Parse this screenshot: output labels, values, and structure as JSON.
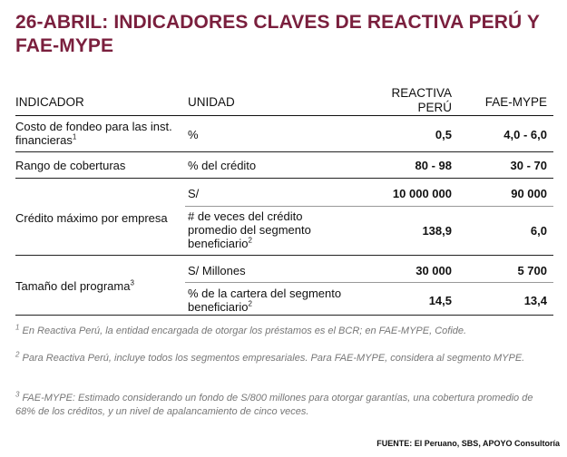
{
  "title": "26-ABRIL: INDICADORES CLAVES DE REACTIVA PERÚ Y FAE-MYPE",
  "headers": {
    "indicador": "INDICADOR",
    "unidad": "UNIDAD",
    "reactiva_line1": "REACTIVA",
    "reactiva_line2": "PERÚ",
    "fae": "FAE-MYPE"
  },
  "rows": {
    "costo": {
      "label": "Costo de fondeo para las inst. financieras",
      "label_line1": "Costo de fondeo para las inst.",
      "label_line2": "financieras",
      "sup": "1",
      "unidad": "%",
      "reactiva": "0,5",
      "fae": "4,0 - 6,0"
    },
    "rango": {
      "label": "Rango de coberturas",
      "unidad": "% del crédito",
      "reactiva": "80 - 98",
      "fae": "30 - 70"
    },
    "credito": {
      "label": "Crédito máximo por empresa",
      "sub1": {
        "unidad": "S/",
        "reactiva": "10 000 000",
        "fae": "90 000"
      },
      "sub2": {
        "unidad_line1": "# de veces del crédito",
        "unidad_line2": "promedio del segmento",
        "unidad_line3": "beneficiario",
        "sup": "2",
        "reactiva": "138,9",
        "fae": "6,0"
      }
    },
    "tamano": {
      "label": "Tamaño del programa",
      "sup": "3",
      "sub1": {
        "unidad": "S/ Millones",
        "reactiva": "30 000",
        "fae": "5 700"
      },
      "sub2": {
        "unidad_line1": "% de la cartera del segmento",
        "unidad_line2": "beneficiario",
        "sup": "2",
        "reactiva": "14,5",
        "fae": "13,4"
      }
    }
  },
  "notes": {
    "n1_sup": "1",
    "n1": "En Reactiva Perú, la entidad encargada de otorgar los préstamos es el BCR; en FAE-MYPE, Cofide.",
    "n2_sup": "2",
    "n2": "Para Reactiva Perú, incluye todos los segmentos empresariales. Para FAE-MYPE, considera al segmento MYPE.",
    "n3_sup": "3",
    "n3": "FAE-MYPE: Estimado considerando un fondo de S/800 millones para otorgar garantías, una cobertura promedio de 68% de los créditos, y un nivel de apalancamiento de cinco veces."
  },
  "source": "FUENTE: El Peruano, SBS, APOYO Consultoría",
  "colors": {
    "title": "#7a1f3d",
    "notes": "#777777"
  }
}
